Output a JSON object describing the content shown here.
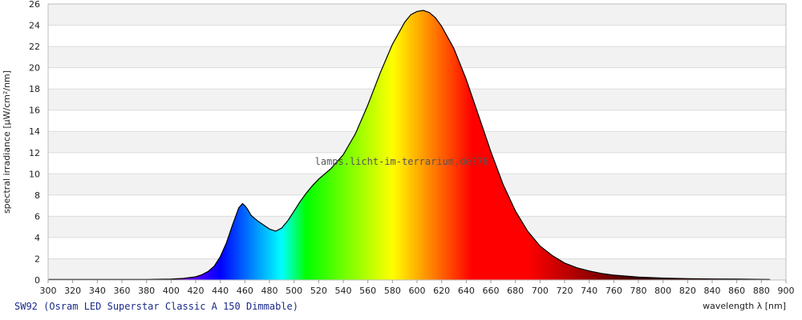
{
  "caption": "SW92 (Osram LED Superstar Classic A 150 Dimmable)",
  "chart_data": {
    "type": "area",
    "title": "",
    "xlabel": "wavelength λ [nm]",
    "ylabel": "spectral irradiance [µW/cm²/nm]",
    "xlim": [
      300,
      900
    ],
    "ylim": [
      0,
      26
    ],
    "xticks": [
      300,
      320,
      340,
      360,
      380,
      400,
      420,
      440,
      460,
      480,
      500,
      520,
      540,
      560,
      580,
      600,
      620,
      640,
      660,
      680,
      700,
      720,
      740,
      760,
      780,
      800,
      820,
      840,
      860,
      880,
      900
    ],
    "yticks": [
      0,
      2,
      4,
      6,
      8,
      10,
      12,
      14,
      16,
      18,
      20,
      22,
      24,
      26
    ],
    "grid": "horizontal alternating bands",
    "watermark": "lamps.licht-im-terrarium.de?78",
    "x": [
      300,
      380,
      400,
      410,
      420,
      425,
      430,
      435,
      440,
      445,
      450,
      455,
      458,
      460,
      462,
      465,
      470,
      475,
      480,
      485,
      490,
      495,
      500,
      505,
      510,
      515,
      520,
      530,
      540,
      550,
      560,
      570,
      580,
      590,
      595,
      600,
      605,
      610,
      615,
      620,
      630,
      640,
      650,
      660,
      670,
      680,
      690,
      700,
      710,
      720,
      730,
      740,
      750,
      760,
      780,
      800,
      820,
      840,
      860,
      880,
      887
    ],
    "y": [
      0.05,
      0.05,
      0.08,
      0.15,
      0.3,
      0.5,
      0.8,
      1.3,
      2.2,
      3.5,
      5.2,
      6.8,
      7.2,
      7.0,
      6.7,
      6.1,
      5.6,
      5.2,
      4.8,
      4.6,
      4.9,
      5.6,
      6.5,
      7.4,
      8.2,
      8.9,
      9.5,
      10.5,
      11.8,
      13.8,
      16.5,
      19.5,
      22.2,
      24.3,
      25.0,
      25.3,
      25.4,
      25.2,
      24.7,
      23.9,
      21.8,
      18.9,
      15.5,
      12.1,
      9.0,
      6.5,
      4.6,
      3.2,
      2.3,
      1.6,
      1.15,
      0.85,
      0.62,
      0.46,
      0.28,
      0.18,
      0.13,
      0.1,
      0.08,
      0.06,
      0.05
    ]
  }
}
